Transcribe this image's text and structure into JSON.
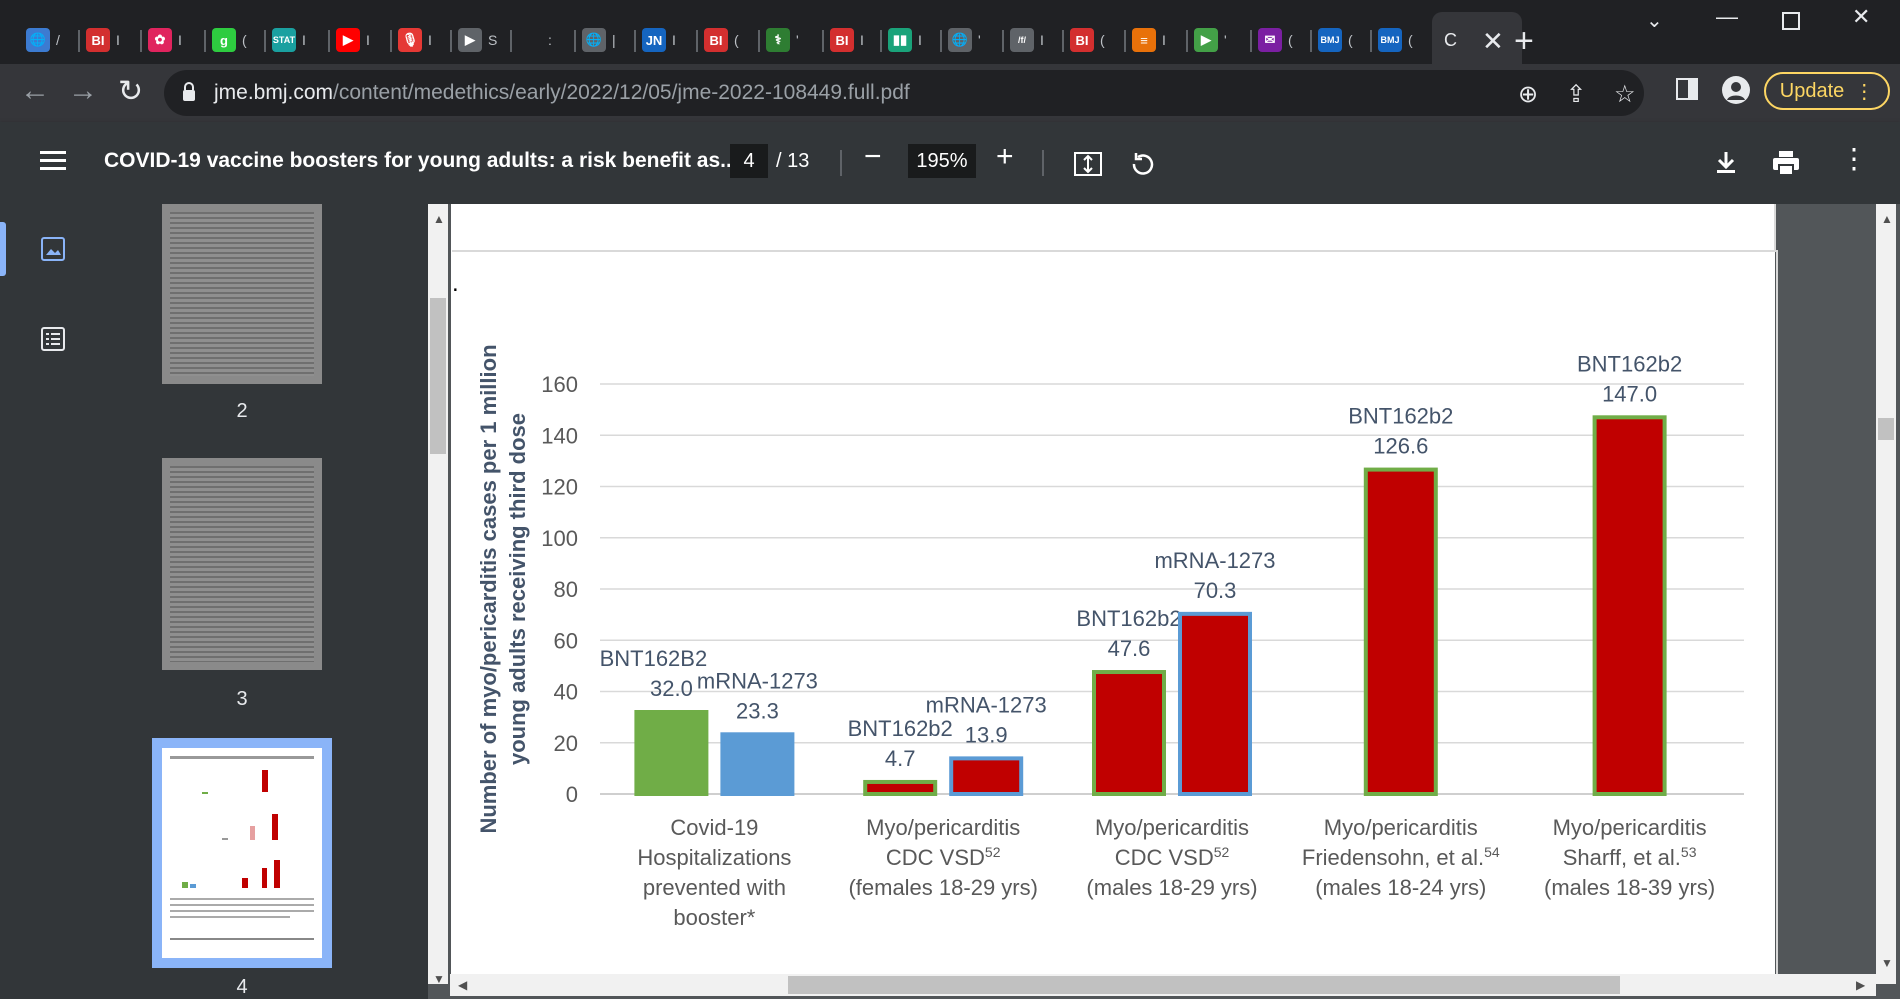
{
  "browser": {
    "tabs": [
      {
        "icon": "globe-icon",
        "color": "#3c7bd1",
        "glyph": "🌐",
        "dot": "/"
      },
      {
        "icon": "bi-logo-icon",
        "color": "#d32f2f",
        "glyph": "BI",
        "dot": "I"
      },
      {
        "icon": "pinwheel-icon",
        "color": "#e0245e",
        "glyph": "✿",
        "dot": "I"
      },
      {
        "icon": "g-logo-icon",
        "color": "#2ecc40",
        "glyph": "g",
        "dot": "("
      },
      {
        "icon": "stat-logo-icon",
        "color": "#1aa0a0",
        "glyph": "STAT",
        "dot": "I"
      },
      {
        "icon": "youtube-icon",
        "color": "#ff0000",
        "glyph": "▶",
        "dot": "I"
      },
      {
        "icon": "microphone-icon",
        "color": "#e53935",
        "glyph": "🎙",
        "dot": "I"
      },
      {
        "icon": "bookmark-tag-icon",
        "color": "#5f6368",
        "glyph": "▶",
        "dot": "S"
      },
      {
        "icon": "blank-icon",
        "color": "#202124",
        "glyph": "",
        "dot": ":"
      },
      {
        "icon": "globe-icon",
        "color": "#5f6368",
        "glyph": "🌐",
        "dot": "|"
      },
      {
        "icon": "jn-logo-icon",
        "color": "#1565c0",
        "glyph": "JN",
        "dot": "I"
      },
      {
        "icon": "bi-logo-icon",
        "color": "#d32f2f",
        "glyph": "BI",
        "dot": "("
      },
      {
        "icon": "caduceus-icon",
        "color": "#2e7d32",
        "glyph": "⚕",
        "dot": "'"
      },
      {
        "icon": "bi-logo-icon",
        "color": "#d32f2f",
        "glyph": "BI",
        "dot": "I"
      },
      {
        "icon": "bookmark-green-icon",
        "color": "#1aa37a",
        "glyph": "▮▮",
        "dot": "I"
      },
      {
        "icon": "globe-icon",
        "color": "#5f6368",
        "glyph": "🌐",
        "dot": "'"
      },
      {
        "icon": "wordmark-icon",
        "color": "#5f6368",
        "glyph": "/f/",
        "dot": "I"
      },
      {
        "icon": "bi-logo-icon",
        "color": "#d32f2f",
        "glyph": "BI",
        "dot": "("
      },
      {
        "icon": "stack-icon",
        "color": "#e8710a",
        "glyph": "≡",
        "dot": "I"
      },
      {
        "icon": "play-circle-icon",
        "color": "#43a047",
        "glyph": "▶",
        "dot": "'"
      },
      {
        "icon": "mail-icon",
        "color": "#7b1fa2",
        "glyph": "✉",
        "dot": "("
      },
      {
        "icon": "bmj-logo-icon",
        "color": "#1565c0",
        "glyph": "BMJ",
        "dot": "("
      },
      {
        "icon": "bmj-logo-icon",
        "color": "#1565c0",
        "glyph": "BMJ",
        "dot": "("
      }
    ],
    "active_tab_title": "C",
    "url_host": "jme.bmj.com",
    "url_path": "/content/medethics/early/2022/12/05/jme-2022-108449.full.pdf",
    "update_label": "Update"
  },
  "pdf": {
    "title": "COVID-19 vaccine boosters for young adults: a risk benefit as...",
    "current_page": "4",
    "total_pages": "/ 13",
    "zoom": "195%",
    "thumbnails": [
      {
        "label": "2"
      },
      {
        "label": "3"
      },
      {
        "label": "4"
      }
    ]
  },
  "chart_data": {
    "type": "bar",
    "ylabel_line1": "Number of myo/pericarditis cases per 1 million",
    "ylabel_line2": "young adults receiving third dose",
    "ylim": [
      0,
      160
    ],
    "yticks": [
      0,
      20,
      40,
      60,
      80,
      100,
      120,
      140,
      160
    ],
    "grid": true,
    "groups": [
      {
        "label": [
          "Covid-19",
          "Hospitalizations",
          "prevented with",
          "booster*"
        ],
        "bars": [
          {
            "name": "BNT162B2",
            "value": 32.0,
            "value_label": "32.0",
            "fill": "#70ad47",
            "edge": "#70ad47"
          },
          {
            "name": "mRNA-1273",
            "value": 23.3,
            "value_label": "23.3",
            "fill": "#5b9bd5",
            "edge": "#5b9bd5"
          }
        ]
      },
      {
        "label": [
          "Myo/pericarditis",
          "CDC VSD",
          "(females 18-29 yrs)"
        ],
        "sup": "52",
        "bars": [
          {
            "name": "BNT162b2",
            "value": 4.7,
            "value_label": "4.7",
            "fill": "#c00000",
            "edge": "#70ad47"
          },
          {
            "name": "mRNA-1273",
            "value": 13.9,
            "value_label": "13.9",
            "fill": "#c00000",
            "edge": "#5b9bd5"
          }
        ]
      },
      {
        "label": [
          "Myo/pericarditis",
          "CDC VSD",
          "(males 18-29 yrs)"
        ],
        "sup": "52",
        "bars": [
          {
            "name": "BNT162b2",
            "value": 47.6,
            "value_label": "47.6",
            "fill": "#c00000",
            "edge": "#70ad47"
          },
          {
            "name": "mRNA-1273",
            "value": 70.3,
            "value_label": "70.3",
            "fill": "#c00000",
            "edge": "#5b9bd5"
          }
        ]
      },
      {
        "label": [
          "Myo/pericarditis",
          "Friedensohn, et al.",
          "(males 18-24 yrs)"
        ],
        "sup": "54",
        "bars": [
          {
            "name": "BNT162b2",
            "value": 126.6,
            "value_label": "126.6",
            "fill": "#c00000",
            "edge": "#70ad47"
          }
        ]
      },
      {
        "label": [
          "Myo/pericarditis",
          "Sharff, et al.",
          "(males 18-39 yrs)"
        ],
        "sup": "53",
        "bars": [
          {
            "name": "BNT162b2",
            "value": 147.0,
            "value_label": "147.0",
            "fill": "#c00000",
            "edge": "#70ad47"
          }
        ]
      }
    ]
  }
}
